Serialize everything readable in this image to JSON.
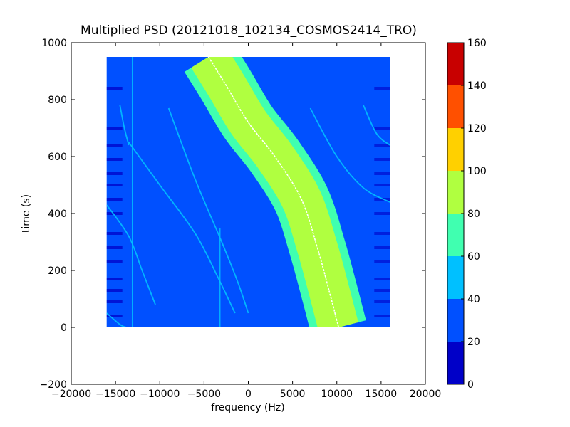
{
  "chart_data": {
    "type": "heatmap",
    "title": "Multiplied PSD (20121018_102134_COSMOS2414_TRO)",
    "xlabel": "frequency (Hz)",
    "ylabel": "time (s)",
    "xlim": [
      -20000,
      20000
    ],
    "ylim": [
      -200,
      1000
    ],
    "x_ticks": [
      -20000,
      -15000,
      -10000,
      -5000,
      0,
      5000,
      10000,
      15000,
      20000
    ],
    "x_tick_labels": [
      "−20000",
      "−15000",
      "−10000",
      "−5000",
      "0",
      "5000",
      "10000",
      "15000",
      "20000"
    ],
    "y_ticks": [
      -200,
      0,
      200,
      400,
      600,
      800,
      1000
    ],
    "y_tick_labels": [
      "−200",
      "0",
      "200",
      "400",
      "600",
      "800",
      "1000"
    ],
    "data_extent": {
      "x": [
        -16000,
        16000
      ],
      "y": [
        0,
        950
      ]
    },
    "background_level_range": [
      20,
      40
    ],
    "colorbar": {
      "min": 0,
      "max": 160,
      "ticks": [
        0,
        20,
        40,
        60,
        80,
        100,
        120,
        140,
        160
      ],
      "tick_labels": [
        "0",
        "20",
        "40",
        "60",
        "80",
        "100",
        "120",
        "140",
        "160"
      ],
      "bins": [
        {
          "from": 0,
          "to": 20,
          "color": "#0000c8"
        },
        {
          "from": 20,
          "to": 40,
          "color": "#0050ff"
        },
        {
          "from": 40,
          "to": 60,
          "color": "#00c0ff"
        },
        {
          "from": 60,
          "to": 80,
          "color": "#40ffb0"
        },
        {
          "from": 80,
          "to": 100,
          "color": "#b0ff40"
        },
        {
          "from": 100,
          "to": 120,
          "color": "#ffd000"
        },
        {
          "from": 120,
          "to": 140,
          "color": "#ff5000"
        },
        {
          "from": 140,
          "to": 160,
          "color": "#c80000"
        }
      ]
    },
    "main_band": {
      "center_points": [
        [
          -4500,
          950
        ],
        [
          -2500,
          850
        ],
        [
          0,
          720
        ],
        [
          3000,
          600
        ],
        [
          6000,
          450
        ],
        [
          7800,
          280
        ],
        [
          9200,
          120
        ],
        [
          10200,
          0
        ]
      ],
      "levels": [
        {
          "level": 60,
          "half_width": 3200
        },
        {
          "level": 80,
          "half_width": 2300
        }
      ],
      "peak_line_color": "#ffffff"
    },
    "faint_tracks": [
      [
        [
          -13500,
          650
        ],
        [
          -10000,
          500
        ],
        [
          -6000,
          330
        ],
        [
          -3500,
          180
        ],
        [
          -1500,
          50
        ]
      ],
      [
        [
          -9000,
          770
        ],
        [
          -6000,
          520
        ],
        [
          -3000,
          300
        ],
        [
          -1200,
          160
        ],
        [
          0,
          50
        ]
      ],
      [
        [
          -16000,
          430
        ],
        [
          -13500,
          320
        ],
        [
          -12000,
          200
        ],
        [
          -10500,
          80
        ]
      ],
      [
        [
          -14500,
          780
        ],
        [
          -14000,
          700
        ],
        [
          -13500,
          640
        ]
      ],
      [
        [
          7000,
          770
        ],
        [
          10000,
          600
        ],
        [
          13000,
          490
        ],
        [
          16000,
          440
        ]
      ],
      [
        [
          13000,
          780
        ],
        [
          14500,
          680
        ],
        [
          16000,
          640
        ]
      ],
      [
        [
          -16000,
          50
        ],
        [
          -14500,
          10
        ],
        [
          -13800,
          0
        ]
      ]
    ],
    "vertical_lines": [
      {
        "x": -13100,
        "y": [
          0,
          950
        ]
      },
      {
        "x": -3200,
        "y": [
          0,
          350
        ]
      }
    ],
    "edge_stripes_y": [
      40,
      90,
      130,
      170,
      230,
      280,
      330,
      400,
      450,
      500,
      540,
      590,
      640,
      700,
      840
    ]
  }
}
